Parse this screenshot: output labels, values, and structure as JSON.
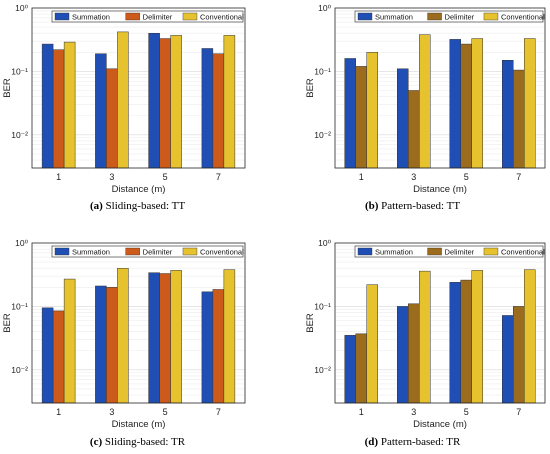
{
  "legend": [
    "Summation",
    "Delimiter",
    "Conventional"
  ],
  "colors": {
    "summation": "#1f4fb4",
    "delimiter": "#cc5a1a",
    "delimiter_b": "#9b6b1e",
    "conventional": "#e5c22e"
  },
  "chart_data": [
    {
      "type": "bar",
      "caption_label": "(a)",
      "caption_text": "Sliding-based: TT",
      "xlabel": "Distance (m)",
      "ylabel": "BER",
      "yscale": "log",
      "ylim": [
        0.003,
        1
      ],
      "yticks": [
        "10⁻²",
        "10⁻¹",
        "10⁰"
      ],
      "categories": [
        "1",
        "3",
        "5",
        "7"
      ],
      "series": [
        {
          "name": "Summation",
          "values": [
            0.27,
            0.19,
            0.4,
            0.23
          ]
        },
        {
          "name": "Delimiter",
          "values": [
            0.22,
            0.11,
            0.33,
            0.19
          ]
        },
        {
          "name": "Conventional",
          "values": [
            0.29,
            0.42,
            0.37,
            0.37
          ]
        }
      ],
      "legend_position": "top",
      "grid": true
    },
    {
      "type": "bar",
      "caption_label": "(b)",
      "caption_text": "Pattern-based: TT",
      "xlabel": "Distance (m)",
      "ylabel": "BER",
      "yscale": "log",
      "ylim": [
        0.003,
        1
      ],
      "yticks": [
        "10⁻²",
        "10⁻¹",
        "10⁰"
      ],
      "categories": [
        "1",
        "3",
        "5",
        "7"
      ],
      "series": [
        {
          "name": "Summation",
          "values": [
            0.16,
            0.11,
            0.32,
            0.15
          ]
        },
        {
          "name": "Delimiter",
          "values": [
            0.12,
            0.05,
            0.27,
            0.105
          ]
        },
        {
          "name": "Conventional",
          "values": [
            0.2,
            0.38,
            0.33,
            0.33
          ]
        }
      ],
      "legend_position": "top",
      "grid": true
    },
    {
      "type": "bar",
      "caption_label": "(c)",
      "caption_text": "Sliding-based: TR",
      "xlabel": "Distance (m)",
      "ylabel": "BER",
      "yscale": "log",
      "ylim": [
        0.003,
        1
      ],
      "yticks": [
        "10⁻²",
        "10⁻¹",
        "10⁰"
      ],
      "categories": [
        "1",
        "3",
        "5",
        "7"
      ],
      "series": [
        {
          "name": "Summation",
          "values": [
            0.095,
            0.21,
            0.34,
            0.17
          ]
        },
        {
          "name": "Delimiter",
          "values": [
            0.085,
            0.2,
            0.33,
            0.185
          ]
        },
        {
          "name": "Conventional",
          "values": [
            0.27,
            0.4,
            0.37,
            0.38
          ]
        }
      ],
      "legend_position": "top",
      "grid": true
    },
    {
      "type": "bar",
      "caption_label": "(d)",
      "caption_text": "Pattern-based: TR",
      "xlabel": "Distance (m)",
      "ylabel": "BER",
      "yscale": "log",
      "ylim": [
        0.003,
        1
      ],
      "yticks": [
        "10⁻²",
        "10⁻¹",
        "10⁰"
      ],
      "categories": [
        "1",
        "3",
        "5",
        "7"
      ],
      "series": [
        {
          "name": "Summation",
          "values": [
            0.035,
            0.1,
            0.24,
            0.072
          ]
        },
        {
          "name": "Delimiter",
          "values": [
            0.037,
            0.11,
            0.26,
            0.1
          ]
        },
        {
          "name": "Conventional",
          "values": [
            0.22,
            0.36,
            0.37,
            0.38
          ]
        }
      ],
      "legend_position": "top",
      "grid": true
    }
  ]
}
